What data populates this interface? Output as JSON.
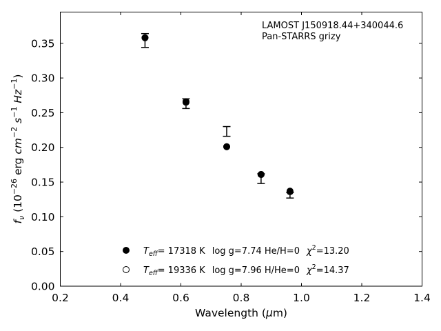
{
  "chart_data": {
    "type": "scatter",
    "xlabel": "Wavelength (μm)",
    "ylabel": "f_ν (10^−26 erg cm^−2 s^−1 Hz^−1)",
    "xlim": [
      0.2,
      1.4
    ],
    "ylim": [
      0.0,
      0.395
    ],
    "x_ticks": [
      "0.2",
      "0.4",
      "0.6",
      "0.8",
      "1.0",
      "1.2",
      "1.4"
    ],
    "y_ticks": [
      "0.00",
      "0.05",
      "0.10",
      "0.15",
      "0.20",
      "0.25",
      "0.30",
      "0.35"
    ],
    "tick_direction": "in",
    "grid": false,
    "annotation": {
      "line1": "LAMOST J150918.44+340044.6",
      "line2": "Pan-STARRS grizy"
    },
    "observed": {
      "x": [
        0.481,
        0.617,
        0.752,
        0.866,
        0.962
      ],
      "y": [
        0.354,
        0.263,
        0.223,
        0.155,
        0.131
      ],
      "yerr": [
        0.01,
        0.007,
        0.007,
        0.007,
        0.004
      ]
    },
    "series": [
      {
        "name": "T_eff= 17318 K  log g=7.74  He/H=0  χ²=13.20",
        "marker": "filled-circle",
        "x": [
          0.481,
          0.617,
          0.752,
          0.866,
          0.962
        ],
        "y": [
          0.358,
          0.266,
          0.201,
          0.161,
          0.137
        ]
      },
      {
        "name": "T_eff= 19336 K  log g=7.96  H/He=0  χ²=14.37",
        "marker": "open-circle",
        "x": [
          0.481,
          0.617,
          0.752,
          0.866,
          0.962
        ],
        "y": [
          0.358,
          0.265,
          0.201,
          0.161,
          0.136
        ]
      }
    ],
    "legend": {
      "placement": "bottom-center",
      "entries": [
        {
          "teff_value": "= 17318 K",
          "rest": "log g=7.74  He/H=0",
          "chi_value": "=13.20"
        },
        {
          "teff_value": "= 19336 K",
          "rest": "log g=7.96  H/He=0",
          "chi_value": "=14.37"
        }
      ]
    }
  }
}
